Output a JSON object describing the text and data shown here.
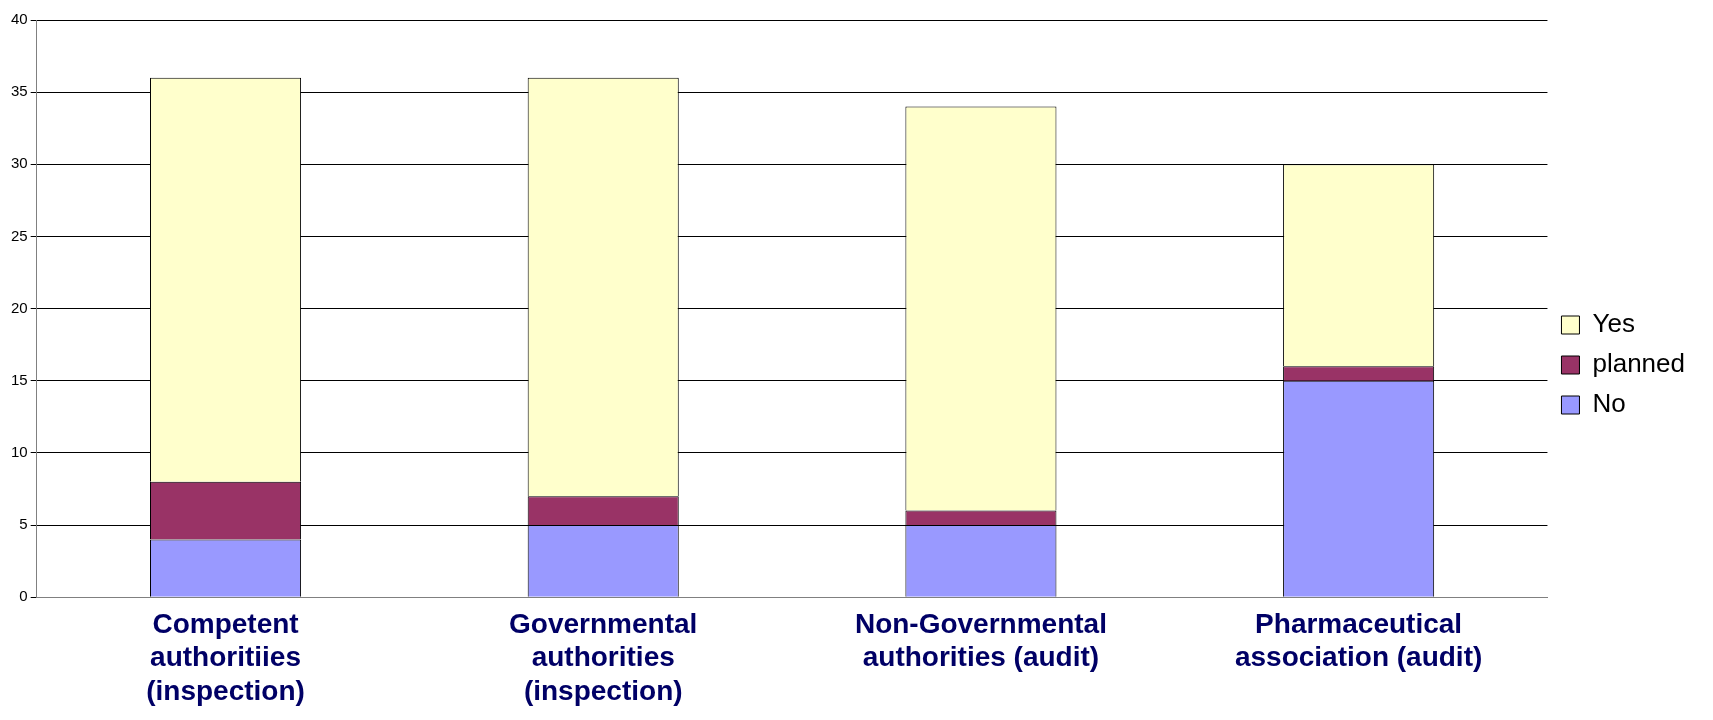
{
  "chart_data": {
    "type": "bar",
    "stacked": true,
    "categories": [
      "Competent authoritiies (inspection)",
      "Governmental authorities (inspection)",
      "Non-Governmental authorities (audit)",
      "Pharmaceutical association (audit)"
    ],
    "series": [
      {
        "name": "No",
        "color": "#9999ff",
        "values": [
          4,
          5,
          5,
          15
        ]
      },
      {
        "name": "planned",
        "color": "#993366",
        "values": [
          4,
          2,
          1,
          1
        ]
      },
      {
        "name": "Yes",
        "color": "#ffffcc",
        "values": [
          28,
          29,
          28,
          14
        ]
      }
    ],
    "ylim": [
      0,
      40
    ],
    "yticks": [
      0,
      5,
      10,
      15,
      20,
      25,
      30,
      35,
      40
    ],
    "grid": "y",
    "legend": "right"
  }
}
